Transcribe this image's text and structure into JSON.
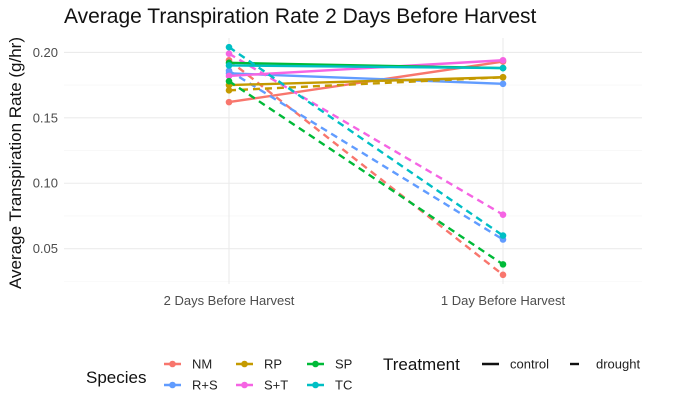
{
  "chart_data": {
    "type": "line",
    "title": "Average Transpiration Rate 2 Days Before Harvest",
    "xlabel": "",
    "ylabel": "Average Transpiration Rate (g/hr)",
    "categories": [
      "2 Days Before Harvest",
      "1 Day Before Harvest"
    ],
    "ylim": [
      0.023,
      0.211
    ],
    "yticks": [
      0.05,
      0.1,
      0.15,
      0.2
    ],
    "ytick_labels": [
      "0.05",
      "0.10",
      "0.15",
      "0.20"
    ],
    "grid": true,
    "legend_position": "bottom",
    "series": [
      {
        "name": "NM",
        "treatment": "control",
        "color": "#F8766D",
        "values": [
          0.162,
          0.193
        ]
      },
      {
        "name": "NM",
        "treatment": "drought",
        "color": "#F8766D",
        "values": [
          0.194,
          0.03
        ]
      },
      {
        "name": "R+S",
        "treatment": "control",
        "color": "#619CFF",
        "values": [
          0.184,
          0.176
        ]
      },
      {
        "name": "R+S",
        "treatment": "drought",
        "color": "#619CFF",
        "values": [
          0.186,
          0.057
        ]
      },
      {
        "name": "RP",
        "treatment": "control",
        "color": "#C49A00",
        "values": [
          0.175,
          0.181
        ]
      },
      {
        "name": "RP",
        "treatment": "drought",
        "color": "#C49A00",
        "values": [
          0.171,
          0.181
        ]
      },
      {
        "name": "S+T",
        "treatment": "control",
        "color": "#F564E3",
        "values": [
          0.182,
          0.194
        ]
      },
      {
        "name": "S+T",
        "treatment": "drought",
        "color": "#F564E3",
        "values": [
          0.199,
          0.076
        ]
      },
      {
        "name": "SP",
        "treatment": "control",
        "color": "#00BA38",
        "values": [
          0.192,
          0.188
        ]
      },
      {
        "name": "SP",
        "treatment": "drought",
        "color": "#00BA38",
        "values": [
          0.178,
          0.038
        ]
      },
      {
        "name": "TC",
        "treatment": "control",
        "color": "#00BFC4",
        "values": [
          0.19,
          0.188
        ]
      },
      {
        "name": "TC",
        "treatment": "drought",
        "color": "#00BFC4",
        "values": [
          0.204,
          0.06
        ]
      }
    ],
    "legend": {
      "species_title": "Species",
      "species": [
        {
          "label": "NM",
          "color": "#F8766D"
        },
        {
          "label": "R+S",
          "color": "#619CFF"
        },
        {
          "label": "RP",
          "color": "#C49A00"
        },
        {
          "label": "S+T",
          "color": "#F564E3"
        },
        {
          "label": "SP",
          "color": "#00BA38"
        },
        {
          "label": "TC",
          "color": "#00BFC4"
        }
      ],
      "treatment_title": "Treatment",
      "treatments": [
        {
          "label": "control",
          "linetype": "solid"
        },
        {
          "label": "drought",
          "linetype": "dashed"
        }
      ]
    }
  }
}
